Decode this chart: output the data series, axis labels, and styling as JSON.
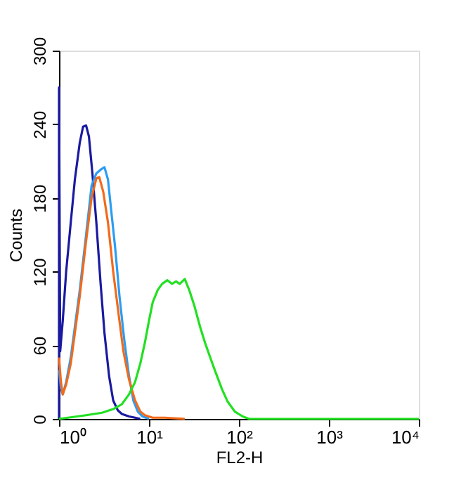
{
  "chart_data": {
    "type": "line",
    "xlabel": "FL2-H",
    "ylabel": "Counts",
    "log": "x",
    "xlim": [
      1,
      10000
    ],
    "xticks": [
      {
        "value": 1,
        "label": "10⁰"
      },
      {
        "value": 10,
        "label": "10¹"
      },
      {
        "value": 100,
        "label": "10²"
      },
      {
        "value": 1000,
        "label": "10³"
      },
      {
        "value": 10000,
        "label": "10⁴"
      }
    ],
    "ylim": [
      0,
      300
    ],
    "yticks": [
      0,
      60,
      120,
      180,
      240,
      300
    ],
    "grid": false,
    "legend": false,
    "marker": "none",
    "line_style": "solid",
    "series": [
      {
        "color": "#1a1aa0",
        "x": [
          1,
          1,
          1.03,
          1.1,
          1.2,
          1.35,
          1.5,
          1.7,
          1.85,
          2.0,
          2.15,
          2.35,
          2.6,
          2.9,
          3.2,
          3.6,
          4.0,
          4.5,
          5.0,
          6,
          7,
          8
        ],
        "values": [
          0,
          270,
          55,
          80,
          120,
          160,
          195,
          225,
          238,
          239,
          230,
          200,
          160,
          110,
          70,
          35,
          15,
          7,
          4,
          2,
          1,
          0
        ]
      },
      {
        "color": "#2a9df4",
        "x": [
          1,
          1.05,
          1.1,
          1.2,
          1.35,
          1.5,
          1.7,
          2.0,
          2.3,
          2.6,
          2.9,
          3.2,
          3.5,
          3.8,
          4.2,
          4.7,
          5.3,
          6,
          6.7,
          7.5,
          8.5,
          10
        ],
        "values": [
          40,
          25,
          20,
          30,
          50,
          75,
          105,
          150,
          190,
          200,
          203,
          205,
          195,
          170,
          140,
          100,
          65,
          35,
          15,
          6,
          2,
          0
        ]
      },
      {
        "color": "#f26a1b",
        "x": [
          1,
          1.05,
          1.1,
          1.2,
          1.35,
          1.5,
          1.7,
          2.0,
          2.3,
          2.6,
          2.8,
          3.1,
          3.5,
          4.0,
          4.6,
          5.2,
          6,
          7,
          8,
          9,
          11,
          15,
          25
        ],
        "values": [
          50,
          30,
          20,
          28,
          45,
          70,
          100,
          145,
          180,
          196,
          197,
          185,
          160,
          120,
          85,
          55,
          32,
          15,
          6,
          3,
          1,
          1,
          0
        ]
      },
      {
        "color": "#22e022",
        "x": [
          1,
          2,
          3,
          4,
          5,
          6,
          7,
          8,
          9,
          10,
          11,
          12.5,
          14,
          16,
          18,
          20,
          22,
          25,
          28,
          32,
          37,
          42,
          48,
          55,
          65,
          75,
          90,
          110,
          130,
          200,
          10000
        ],
        "values": [
          0,
          3,
          5,
          8,
          12,
          20,
          30,
          45,
          62,
          80,
          95,
          105,
          110,
          113,
          110,
          112,
          110,
          114,
          105,
          92,
          75,
          62,
          50,
          38,
          24,
          14,
          6,
          2,
          0,
          0,
          0
        ]
      }
    ]
  }
}
